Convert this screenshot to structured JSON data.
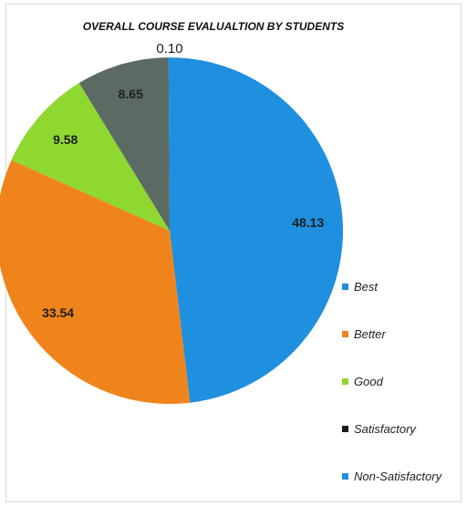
{
  "chart_data": {
    "type": "pie",
    "title": "OVERALL COURSE EVALUALTION BY STUDENTS",
    "categories": [
      "Best",
      "Better",
      "Good",
      "Satisfactory",
      "Non-Satisfactory"
    ],
    "values": [
      48.13,
      33.54,
      9.58,
      8.65,
      0.1
    ],
    "labels": [
      "48.13",
      "33.54",
      "9.58",
      "8.65",
      "0.10"
    ],
    "colors": [
      "#1f8fdf",
      "#f0841c",
      "#8fd830",
      "#5b6a63",
      "#1f8fdf"
    ],
    "legend_position": "right",
    "start_direction": "top, clockwise"
  }
}
